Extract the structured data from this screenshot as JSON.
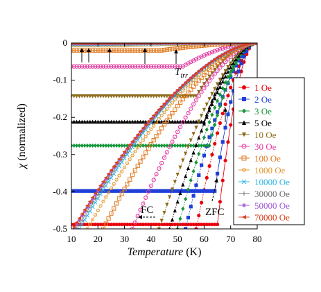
{
  "chart_data": {
    "type": "scatter",
    "title": "",
    "xlabel": "Temperature",
    "xunit": " (K)",
    "ylabel_symbol": "χ",
    "ylabel_text": " (normalized)",
    "xlim": [
      10,
      80
    ],
    "ylim": [
      -0.5,
      0
    ],
    "x_ticks": [
      10,
      20,
      30,
      40,
      50,
      60,
      70,
      80
    ],
    "y_ticks": [
      {
        "value": 0,
        "label": "0"
      },
      {
        "value": -0.1,
        "label": "-0.1"
      },
      {
        "value": -0.2,
        "label": "-0.2"
      },
      {
        "value": -0.3,
        "label": "-0.3"
      },
      {
        "value": -0.4,
        "label": "-0.4"
      },
      {
        "value": -0.5,
        "label": "-0.5"
      }
    ],
    "grid": false,
    "legend_position": "right",
    "annotations": {
      "tirr": {
        "base": "T",
        "sub": "irr"
      },
      "fc": "FC",
      "zfc": "ZFC"
    },
    "series": [
      {
        "name": "1 Oe",
        "color": "#e8000b",
        "marker": "circle",
        "fc_level": -0.488,
        "fc_onset": 65,
        "zfc_tmin": 57
      },
      {
        "name": "2 Oe",
        "color": "#1f3fd8",
        "marker": "square",
        "fc_level": -0.398,
        "fc_onset": 64,
        "zfc_tmin": 53
      },
      {
        "name": "3 Oe",
        "color": "#15963a",
        "marker": "diamond",
        "fc_level": -0.276,
        "fc_onset": 62,
        "zfc_tmin": 50
      },
      {
        "name": "5 Oe",
        "color": "#000000",
        "marker": "triangle-up",
        "fc_level": -0.212,
        "fc_onset": 60,
        "zfc_tmin": 47
      },
      {
        "name": "10 Oe",
        "color": "#8c6b1a",
        "marker": "triangle-down",
        "fc_level": -0.143,
        "fc_onset": 57,
        "zfc_tmin": 43
      },
      {
        "name": "30 Oe",
        "color": "#e23aa0",
        "marker": "circle-open",
        "fc_level": -0.063,
        "fc_onset": 52,
        "zfc_tmin": 33
      },
      {
        "name": "100 Oe",
        "color": "#e07a20",
        "marker": "square-open",
        "fc_level": -0.02,
        "fc_onset": 44,
        "zfc_tmin": 22
      },
      {
        "name": "1000 Oe",
        "color": "#e4962c",
        "marker": "circle-open-small",
        "fc_level": -0.007,
        "fc_onset": 30,
        "zfc_tmin": 16
      },
      {
        "name": "10000 Oe",
        "color": "#2fb6e8",
        "marker": "x",
        "fc_level": -0.004,
        "fc_onset": 22,
        "zfc_tmin": 13
      },
      {
        "name": "30000 Oe",
        "color": "#6f6f6f",
        "marker": "plus",
        "fc_level": -0.003,
        "fc_onset": 18,
        "zfc_tmin": 12
      },
      {
        "name": "50000 Oe",
        "color": "#a05ad8",
        "marker": "star",
        "fc_level": -0.002,
        "fc_onset": 15,
        "zfc_tmin": 11
      },
      {
        "name": "70000 Oe",
        "color": "#d8401c",
        "marker": "triangle-left",
        "fc_level": -0.001,
        "fc_onset": 13,
        "zfc_tmin": 10.5
      }
    ]
  }
}
